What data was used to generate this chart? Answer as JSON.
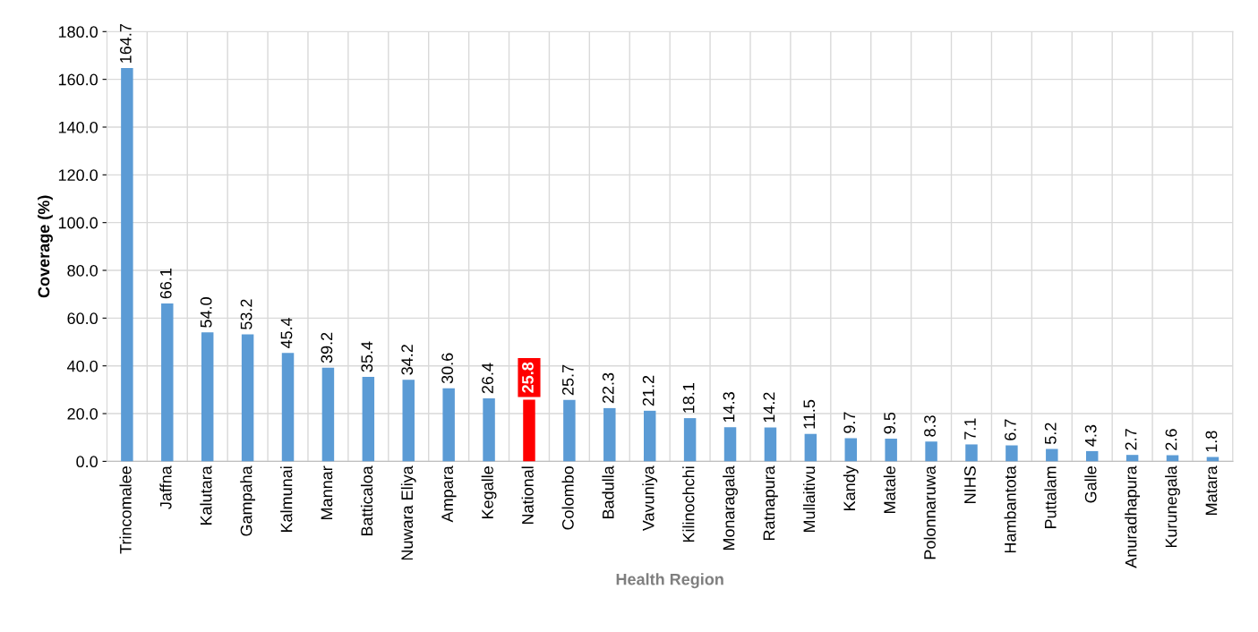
{
  "chart_data": {
    "type": "bar",
    "xlabel": "Health Region",
    "ylabel": "Coverage (%)",
    "categories": [
      "Trincomalee",
      "Jaffna",
      "Kalutara",
      "Gampaha",
      "Kalmunai",
      "Mannar",
      "Batticaloa",
      "Nuwara Eliya",
      "Ampara",
      "Kegalle",
      "National",
      "Colombo",
      "Badulla",
      "Vavuniya",
      "Kilinochchi",
      "Monaragala",
      "Ratnapura",
      "Mullaitivu",
      "Kandy",
      "Matale",
      "Polonnaruwa",
      "NIHS",
      "Hambantota",
      "Puttalam",
      "Galle",
      "Anuradhapura",
      "Kurunegala",
      "Matara"
    ],
    "values": [
      164.7,
      66.1,
      54.0,
      53.2,
      45.4,
      39.2,
      35.4,
      34.2,
      30.6,
      26.4,
      25.8,
      25.7,
      22.3,
      21.2,
      18.1,
      14.3,
      14.2,
      11.5,
      9.7,
      9.5,
      8.3,
      7.1,
      6.7,
      5.2,
      4.3,
      2.7,
      2.6,
      1.8
    ],
    "value_labels": [
      "164.7",
      "66.1",
      "54.0",
      "53.2",
      "45.4",
      "39.2",
      "35.4",
      "34.2",
      "30.6",
      "26.4",
      "25.8",
      "25.7",
      "22.3",
      "21.2",
      "18.1",
      "14.3",
      "14.2",
      "11.5",
      "9.7",
      "9.5",
      "8.3",
      "7.1",
      "6.7",
      "5.2",
      "4.3",
      "2.7",
      "2.6",
      "1.8"
    ],
    "color": "#5b9bd5",
    "colors": [
      "#5b9bd5",
      "#5b9bd5",
      "#5b9bd5",
      "#5b9bd5",
      "#5b9bd5",
      "#5b9bd5",
      "#5b9bd5",
      "#5b9bd5",
      "#5b9bd5",
      "#5b9bd5",
      "#ff0000",
      "#5b9bd5",
      "#5b9bd5",
      "#5b9bd5",
      "#5b9bd5",
      "#5b9bd5",
      "#5b9bd5",
      "#5b9bd5",
      "#5b9bd5",
      "#5b9bd5",
      "#5b9bd5",
      "#5b9bd5",
      "#5b9bd5",
      "#5b9bd5",
      "#5b9bd5",
      "#5b9bd5",
      "#5b9bd5",
      "#5b9bd5"
    ],
    "ylim": [
      0,
      180
    ],
    "yticks": [
      {
        "value": 0,
        "label": "0.0"
      },
      {
        "value": 20,
        "label": "20.0"
      },
      {
        "value": 40,
        "label": "40.0"
      },
      {
        "value": 60,
        "label": "60.0"
      },
      {
        "value": 80,
        "label": "80.0"
      },
      {
        "value": 100,
        "label": "100.0"
      },
      {
        "value": 120,
        "label": "120.0"
      },
      {
        "value": 140,
        "label": "140.0"
      },
      {
        "value": 160,
        "label": "160.0"
      },
      {
        "value": 180,
        "label": "180.0"
      }
    ],
    "grid": true
  }
}
